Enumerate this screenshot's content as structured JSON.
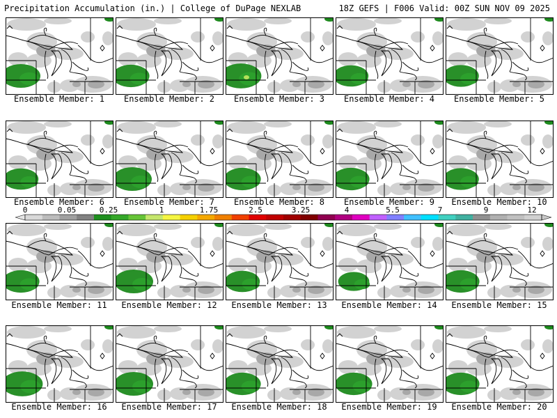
{
  "header": {
    "left": "Precipitation Accumulation (in.) | College of DuPage NEXLAB",
    "right": "18Z GEFS | F006 Valid: 00Z SUN NOV 09 2025"
  },
  "members": [
    {
      "label": "Ensemble Member: 1"
    },
    {
      "label": "Ensemble Member: 2"
    },
    {
      "label": "Ensemble Member: 3"
    },
    {
      "label": "Ensemble Member: 4"
    },
    {
      "label": "Ensemble Member: 5"
    },
    {
      "label": "Ensemble Member: 6"
    },
    {
      "label": "Ensemble Member: 7"
    },
    {
      "label": "Ensemble Member: 8"
    },
    {
      "label": "Ensemble Member: 9"
    },
    {
      "label": "Ensemble Member: 10"
    },
    {
      "label": "Ensemble Member: 11"
    },
    {
      "label": "Ensemble Member: 12"
    },
    {
      "label": "Ensemble Member: 13"
    },
    {
      "label": "Ensemble Member: 14"
    },
    {
      "label": "Ensemble Member: 15"
    },
    {
      "label": "Ensemble Member: 16"
    },
    {
      "label": "Ensemble Member: 17"
    },
    {
      "label": "Ensemble Member: 18"
    },
    {
      "label": "Ensemble Member: 19"
    },
    {
      "label": "Ensemble Member: 20"
    }
  ],
  "colorbar": {
    "colors": [
      "#d9d9d9",
      "#bcbcbc",
      "#a0a0a0",
      "#828282",
      "#1f8f1f",
      "#35a82a",
      "#66c437",
      "#c5e66c",
      "#f5f542",
      "#f5d000",
      "#f5a800",
      "#f08000",
      "#f04000",
      "#e00000",
      "#c00000",
      "#a00000",
      "#800000",
      "#900050",
      "#b00080",
      "#e000c0",
      "#c060ff",
      "#8080ff",
      "#40c0ff",
      "#00e0ff",
      "#40d0c0",
      "#40b0a0",
      "#909090",
      "#b0b0b0",
      "#c0c0c0",
      "#d0d0d0"
    ],
    "tick_labels": [
      "0",
      "0.05",
      "0.25",
      "1",
      "1.75",
      "2.5",
      "3.25",
      "4",
      "5.5",
      "7",
      "9",
      "12"
    ]
  },
  "colors": {
    "light_precip": "#d2d2d2",
    "moderate_precip": "#a8a8a8",
    "heavy_precip": "#1e8a1e",
    "heavier_precip": "#2ca02c",
    "peak_precip": "#b4e05a"
  }
}
